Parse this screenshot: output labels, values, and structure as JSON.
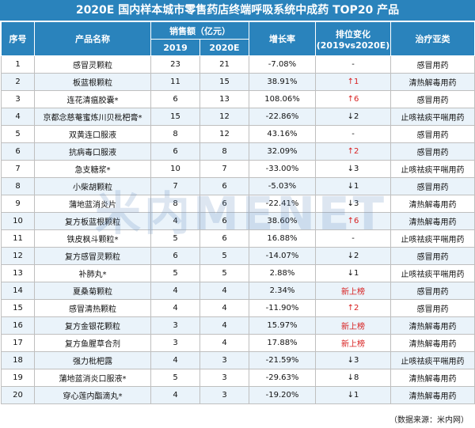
{
  "title": "2020E 国内样本城市零售药店终端呼吸系统中成药 TOP20 产品",
  "headers": {
    "rank": "序号",
    "name": "产品名称",
    "sales": "销售额（亿元）",
    "y2019": "2019",
    "y2020": "2020E",
    "growth": "增长率",
    "rank_change": "排位变化",
    "rank_change_sub": "(2019vs2020E)",
    "category": "治疗亚类"
  },
  "rows": [
    {
      "rank": "1",
      "name": "感冒灵颗粒",
      "s2019": "23",
      "s2020": "21",
      "growth": "-7.08%",
      "change": "-",
      "dir": "none",
      "cat": "感冒用药"
    },
    {
      "rank": "2",
      "name": "板蓝根颗粒",
      "s2019": "11",
      "s2020": "15",
      "growth": "38.91%",
      "change": "↑1",
      "dir": "up",
      "cat": "清热解毒用药"
    },
    {
      "rank": "3",
      "name": "连花清瘟胶囊*",
      "s2019": "6",
      "s2020": "13",
      "growth": "108.06%",
      "change": "↑6",
      "dir": "up",
      "cat": "感冒用药"
    },
    {
      "rank": "4",
      "name": "京都念慈菴蜜炼川贝枇杷膏*",
      "s2019": "15",
      "s2020": "12",
      "growth": "-22.86%",
      "change": "↓2",
      "dir": "down",
      "cat": "止咳祛痰平喘用药"
    },
    {
      "rank": "5",
      "name": "双黄连口服液",
      "s2019": "8",
      "s2020": "12",
      "growth": "43.16%",
      "change": "-",
      "dir": "none",
      "cat": "感冒用药"
    },
    {
      "rank": "6",
      "name": "抗病毒口服液",
      "s2019": "6",
      "s2020": "8",
      "growth": "32.09%",
      "change": "↑2",
      "dir": "up",
      "cat": "感冒用药"
    },
    {
      "rank": "7",
      "name": "急支糖浆*",
      "s2019": "10",
      "s2020": "7",
      "growth": "-33.00%",
      "change": "↓3",
      "dir": "down",
      "cat": "止咳祛痰平喘用药"
    },
    {
      "rank": "8",
      "name": "小柴胡颗粒",
      "s2019": "7",
      "s2020": "6",
      "growth": "-5.03%",
      "change": "↓1",
      "dir": "down",
      "cat": "感冒用药"
    },
    {
      "rank": "9",
      "name": "蒲地蓝消炎片",
      "s2019": "8",
      "s2020": "6",
      "growth": "-22.41%",
      "change": "↓3",
      "dir": "down",
      "cat": "清热解毒用药"
    },
    {
      "rank": "10",
      "name": "复方板蓝根颗粒",
      "s2019": "4",
      "s2020": "6",
      "growth": "38.60%",
      "change": "↑6",
      "dir": "up",
      "cat": "清热解毒用药"
    },
    {
      "rank": "11",
      "name": "铁皮枫斗颗粒*",
      "s2019": "5",
      "s2020": "6",
      "growth": "16.88%",
      "change": "-",
      "dir": "none",
      "cat": "止咳祛痰平喘用药"
    },
    {
      "rank": "12",
      "name": "复方感冒灵颗粒",
      "s2019": "6",
      "s2020": "5",
      "growth": "-14.07%",
      "change": "↓2",
      "dir": "down",
      "cat": "感冒用药"
    },
    {
      "rank": "13",
      "name": "补肺丸*",
      "s2019": "5",
      "s2020": "5",
      "growth": "2.88%",
      "change": "↓1",
      "dir": "down",
      "cat": "止咳祛痰平喘用药"
    },
    {
      "rank": "14",
      "name": "夏桑菊颗粒",
      "s2019": "4",
      "s2020": "4",
      "growth": "2.34%",
      "change": "新上榜",
      "dir": "new",
      "cat": "感冒用药"
    },
    {
      "rank": "15",
      "name": "感冒清热颗粒",
      "s2019": "4",
      "s2020": "4",
      "growth": "-11.90%",
      "change": "↑2",
      "dir": "up",
      "cat": "感冒用药"
    },
    {
      "rank": "16",
      "name": "复方金银花颗粒",
      "s2019": "3",
      "s2020": "4",
      "growth": "15.97%",
      "change": "新上榜",
      "dir": "new",
      "cat": "清热解毒用药"
    },
    {
      "rank": "17",
      "name": "复方鱼腥草合剂",
      "s2019": "3",
      "s2020": "4",
      "growth": "17.88%",
      "change": "新上榜",
      "dir": "new",
      "cat": "清热解毒用药"
    },
    {
      "rank": "18",
      "name": "强力枇杷露",
      "s2019": "4",
      "s2020": "3",
      "growth": "-21.59%",
      "change": "↓3",
      "dir": "down",
      "cat": "止咳祛痰平喘用药"
    },
    {
      "rank": "19",
      "name": "蒲地蓝消炎口服液*",
      "s2019": "5",
      "s2020": "3",
      "growth": "-29.63%",
      "change": "↓8",
      "dir": "down",
      "cat": "清热解毒用药"
    },
    {
      "rank": "20",
      "name": "穿心莲内酯滴丸*",
      "s2019": "4",
      "s2020": "3",
      "growth": "-19.20%",
      "change": "↓1",
      "dir": "down",
      "cat": "清热解毒用药"
    }
  ],
  "watermark": "米内MENET",
  "source": "（数据来源：米内网）",
  "colors": {
    "header_bg": "#2a83bc",
    "alt_row": "#eaf3fa",
    "up_red": "#d82020"
  }
}
